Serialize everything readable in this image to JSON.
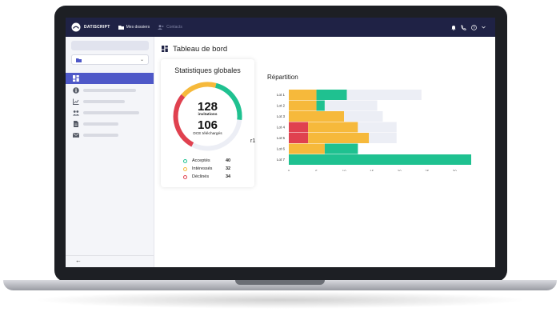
{
  "app": {
    "brand": "DATISCRIPT"
  },
  "topbar": {
    "nav": [
      {
        "label": "Mes dossiers"
      },
      {
        "label": "Contacts"
      }
    ],
    "icons": [
      "bell-icon",
      "phone-icon",
      "help-icon",
      "chevron-down-icon"
    ]
  },
  "sidebar": {
    "items": [
      {
        "icon": "dashboard-icon",
        "active": true
      },
      {
        "icon": "info-icon",
        "active": false
      },
      {
        "icon": "chart-icon",
        "active": false
      },
      {
        "icon": "contacts-icon",
        "active": false
      },
      {
        "icon": "document-icon",
        "active": false
      },
      {
        "icon": "mail-icon",
        "active": false
      }
    ]
  },
  "main": {
    "title": "Tableau de bord",
    "stats": {
      "title": "Statistiques globales",
      "invitations_value": "128",
      "invitations_label": "invitations",
      "dce_value": "106",
      "dce_label": "DCE téléchargés",
      "legend": [
        {
          "label": "Acceptés",
          "value": "40",
          "color": "#1fc190"
        },
        {
          "label": "Intéressés",
          "value": "32",
          "color": "#f6b93b"
        },
        {
          "label": "Déclinés",
          "value": "34",
          "color": "#e0414f"
        }
      ]
    },
    "repartition_title": "Répartition",
    "stray_text": "r1"
  },
  "chart_data": {
    "type": "bar",
    "orientation": "horizontal",
    "stacked": true,
    "categories": [
      "Lot 1",
      "Lot 2",
      "Lot 3",
      "Lot 4",
      "Lot 5",
      "Lot 6",
      "Lot 7"
    ],
    "series": [
      {
        "color": "#e0414f",
        "values": [
          0,
          0,
          0,
          3.5,
          3.5,
          0,
          0
        ]
      },
      {
        "color": "#f6b93b",
        "values": [
          5,
          5,
          10,
          9,
          11,
          6.5,
          0
        ]
      },
      {
        "color": "#1fc190",
        "values": [
          5.5,
          1.5,
          0,
          0,
          0,
          6,
          33
        ]
      },
      {
        "color": "#eceef5",
        "values": [
          13.5,
          9.5,
          7,
          7,
          5,
          0,
          0
        ]
      }
    ],
    "xticks": [
      "0",
      "5",
      "10",
      "15",
      "20",
      "25",
      "30"
    ],
    "xlim": [
      0,
      33
    ],
    "grid": false
  }
}
